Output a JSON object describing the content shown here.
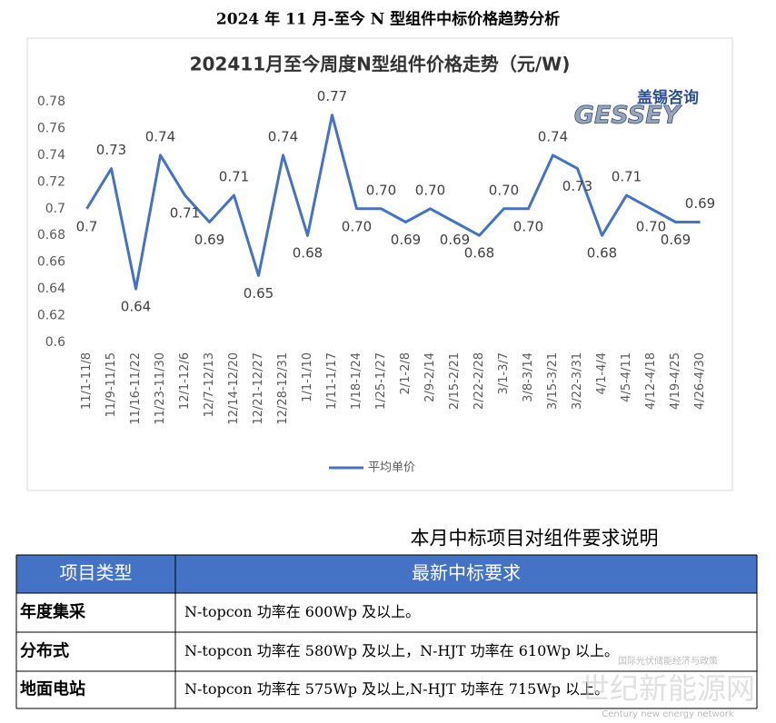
{
  "title": "2024 年 11 月-至今 N 型组件中标价格趋势分析",
  "chart_data": {
    "type": "line",
    "title": "202411月至今周度N型组件价格走势（元/W)",
    "categories": [
      "11/1-11/8",
      "11/9-11/15",
      "11/16-11/22",
      "11/23-11/30",
      "12/1-12/6",
      "12/7-12/13",
      "12/14-12/20",
      "12/21-12/27",
      "12/28-12/31",
      "1/1-1/10",
      "1/11-1/17",
      "1/18-1/24",
      "1/25-1/27",
      "2/1-2/8",
      "2/9-2/14",
      "2/15-2/21",
      "2/22-2/28",
      "3/1-3/7",
      "3/8-3/14",
      "3/15-3/21",
      "3/22-3/31",
      "4/1-4/4",
      "4/5-4/11",
      "4/12-4/18",
      "4/19-4/25",
      "4/26-4/30"
    ],
    "series": [
      {
        "name": "平均单价",
        "color": "#4472c4",
        "values": [
          0.7,
          0.73,
          0.64,
          0.74,
          0.71,
          0.69,
          0.71,
          0.65,
          0.74,
          0.68,
          0.77,
          0.7,
          0.7,
          0.69,
          0.7,
          0.69,
          0.68,
          0.7,
          0.7,
          0.74,
          0.73,
          0.68,
          0.71,
          0.7,
          0.69,
          0.69
        ],
        "value_labels": [
          "0.7",
          "0.73",
          "0.64",
          "0.74",
          "0.71",
          "0.69",
          "0.71",
          "0.65",
          "0.74",
          "0.68",
          "0.77",
          "0.70",
          "0.70",
          "0.69",
          "0.70",
          "0.69",
          "0.68",
          "0.70",
          "0.70",
          "0.74",
          "0.73",
          "0.68",
          "0.71",
          "0.70",
          "0.69",
          "0.69"
        ]
      }
    ],
    "ylim": [
      0.6,
      0.78
    ],
    "yticks": [
      0.6,
      0.62,
      0.64,
      0.66,
      0.68,
      0.7,
      0.72,
      0.74,
      0.76,
      0.78
    ],
    "legend": "bottom"
  },
  "logo": {
    "cn": "盖锡咨询",
    "en": "GESSEY"
  },
  "watermark": {
    "top": "国际光伏储能经济与政策",
    "main": "世纪新能源网",
    "sub": "Century new energy network"
  },
  "table": {
    "title": "本月中标项目对组件要求说明",
    "header": [
      "项目类型",
      "最新中标要求"
    ],
    "rows": [
      [
        "年度集采",
        "N-topcon 功率在 600Wp 及以上。"
      ],
      [
        "分布式",
        "N-topcon 功率在 580Wp 及以上，N-HJT 功率在 610Wp 以上。"
      ],
      [
        "地面电站",
        "N-topcon 功率在 575Wp 及以上,N-HJT 功率在 715Wp 以上。"
      ]
    ]
  }
}
